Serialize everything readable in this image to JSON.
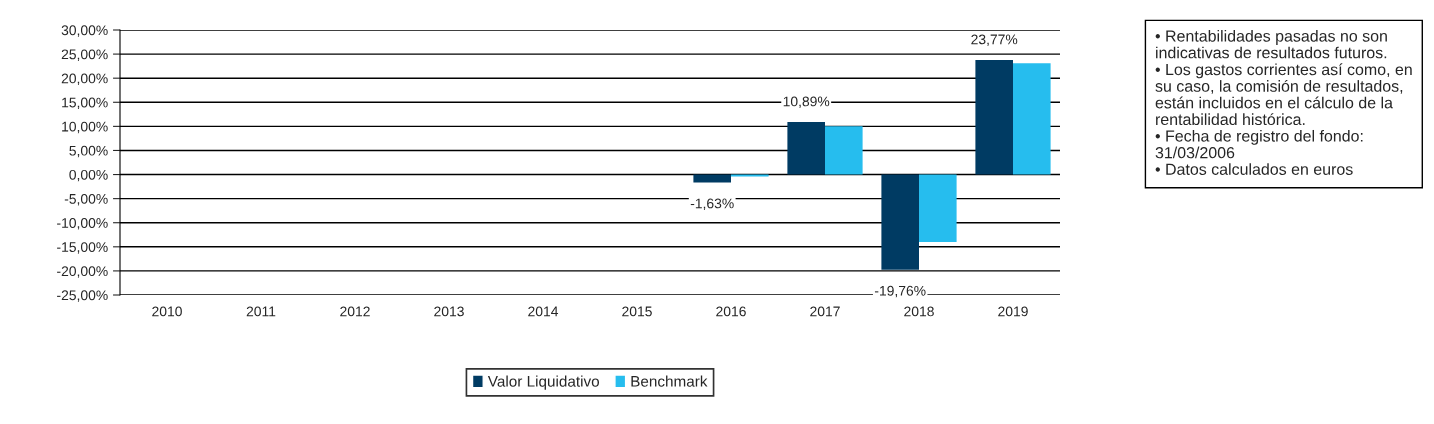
{
  "chart_data": {
    "type": "bar",
    "categories": [
      "2010",
      "2011",
      "2012",
      "2013",
      "2014",
      "2015",
      "2016",
      "2017",
      "2018",
      "2019"
    ],
    "series": [
      {
        "name": "Valor Liquidativo",
        "color": "#003b63",
        "values": [
          null,
          null,
          null,
          null,
          null,
          null,
          -1.63,
          10.89,
          -19.76,
          23.77
        ],
        "value_labels": [
          null,
          null,
          null,
          null,
          null,
          null,
          "-1,63%",
          "10,89%",
          "-19,76%",
          "23,77%"
        ]
      },
      {
        "name": "Benchmark",
        "color": "#26bdee",
        "values": [
          null,
          null,
          null,
          null,
          null,
          null,
          -0.4,
          10.0,
          -14.0,
          23.1
        ]
      }
    ],
    "ylim": [
      -25,
      30
    ],
    "yticks": [
      {
        "value": -25,
        "label": "-25,00%"
      },
      {
        "value": -20,
        "label": "-20,00%"
      },
      {
        "value": -15,
        "label": "-15,00%"
      },
      {
        "value": -10,
        "label": "-10,00%"
      },
      {
        "value": -5,
        "label": "-5,00%"
      },
      {
        "value": 0,
        "label": "0,00%"
      },
      {
        "value": 5,
        "label": "5,00%"
      },
      {
        "value": 10,
        "label": "10,00%"
      },
      {
        "value": 15,
        "label": "15,00%"
      },
      {
        "value": 20,
        "label": "20,00%"
      },
      {
        "value": 25,
        "label": "25,00%"
      },
      {
        "value": 30,
        "label": "30,00%"
      }
    ],
    "grid": "y",
    "legend": "bottom",
    "annotations": [
      "• Rentabilidades pasadas no son indicativas de resultados futuros.\n• Los gastos corrientes así como, en su caso, la comisión de resultados, están incluidos en el cálculo de la rentabilidad histórica.\n• Fecha de registro del fondo: 31/03/2006\n• Datos calculados en euros"
    ]
  }
}
